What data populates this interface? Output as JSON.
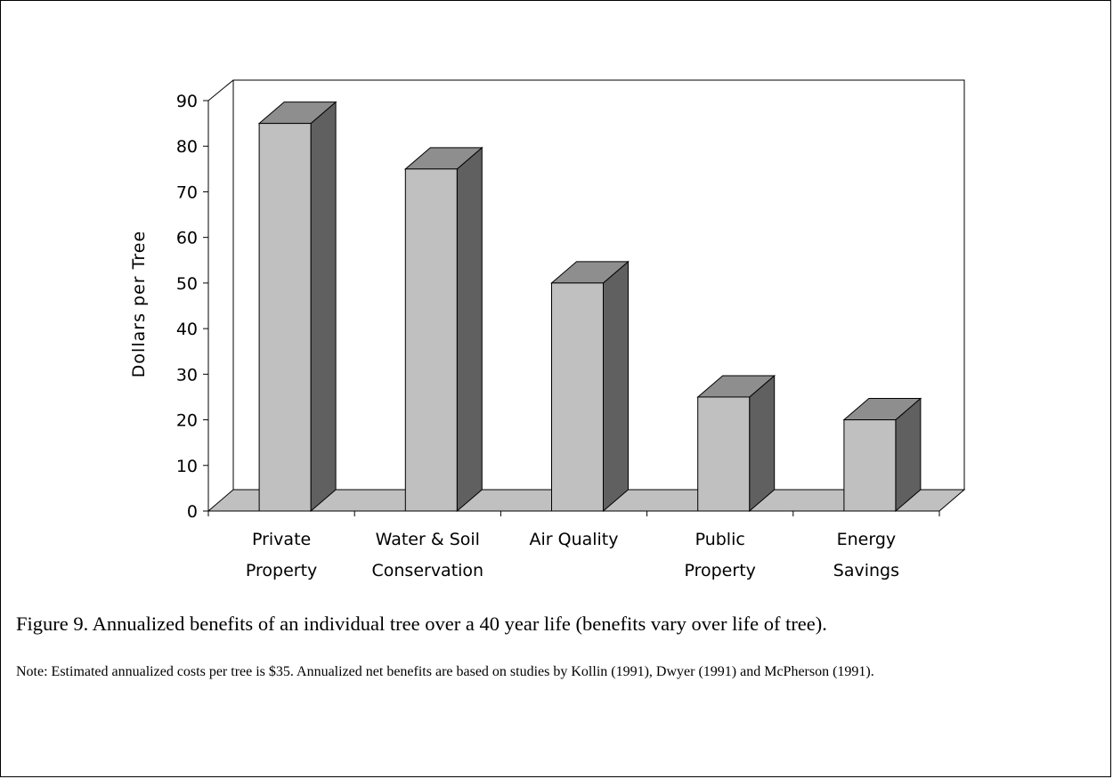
{
  "chart_data": {
    "type": "bar",
    "style": "3d-column",
    "title": "",
    "xlabel": "",
    "ylabel": "Dollars per Tree",
    "ylim": [
      0,
      90
    ],
    "yticks": [
      0,
      10,
      20,
      30,
      40,
      50,
      60,
      70,
      80,
      90
    ],
    "categories": [
      [
        "Private",
        "Property"
      ],
      [
        "Water & Soil",
        "Conservation"
      ],
      [
        "Air Quality"
      ],
      [
        "Public",
        "Property"
      ],
      [
        "Energy",
        "Savings"
      ]
    ],
    "values": [
      85,
      75,
      50,
      25,
      20
    ],
    "grid": false,
    "legend": "none",
    "colors": {
      "bar_front": "#c0c0c0",
      "bar_top": "#8e8e8e",
      "bar_side": "#606060",
      "floor": "#c0c0c0",
      "wall": "#ffffff",
      "line": "#000000"
    }
  },
  "caption": "Figure 9.  Annualized benefits of an individual tree over a 40 year life (benefits vary over life of tree).",
  "note": "Note:  Estimated annualized costs per tree is $35.  Annualized net benefits are based on studies by Kollin (1991), Dwyer (1991) and McPherson (1991)."
}
